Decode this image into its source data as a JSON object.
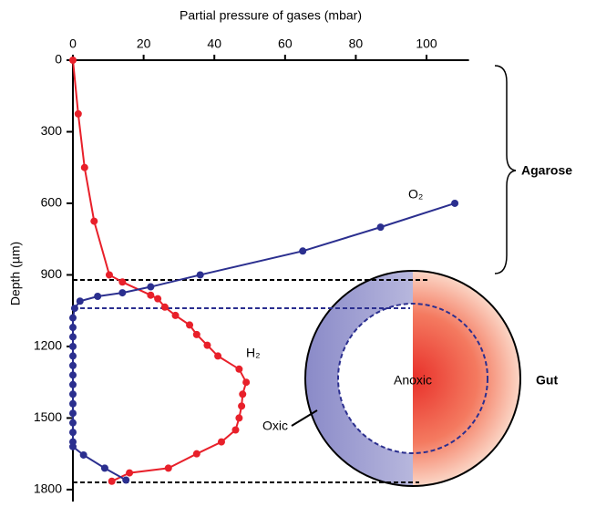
{
  "chart_data": {
    "type": "line",
    "x_label": "Partial pressure of gases (mbar)",
    "y_label": "Depth (µm)",
    "xlim": [
      0,
      112
    ],
    "xticks": [
      0,
      20,
      40,
      60,
      80,
      100
    ],
    "ylim": [
      0,
      1850
    ],
    "yticks": [
      0,
      300,
      600,
      900,
      1200,
      1500,
      1800
    ],
    "y_inverted": true,
    "x_axis_top": true,
    "series": [
      {
        "name": "H₂",
        "color": "#e8202a",
        "x": [
          0,
          1.5,
          3.3,
          6,
          10.3,
          14,
          22,
          24,
          26,
          29,
          33,
          35,
          38,
          41,
          47,
          49,
          48,
          47.7,
          47,
          46,
          42,
          35,
          27,
          16,
          11
        ],
        "y": [
          0,
          225,
          450,
          675,
          900,
          930,
          985,
          1000,
          1035,
          1070,
          1110,
          1150,
          1195,
          1240,
          1295,
          1350,
          1400,
          1450,
          1500,
          1550,
          1600,
          1650,
          1710,
          1730,
          1765
        ]
      },
      {
        "name": "O₂",
        "color": "#2b2f8f",
        "x": [
          108,
          87,
          65,
          36,
          22,
          14,
          7,
          2,
          0.5,
          0,
          0,
          0,
          0,
          0,
          0,
          0,
          0,
          0,
          0,
          0,
          0,
          0,
          0,
          0,
          3,
          9,
          15
        ],
        "y": [
          600,
          700,
          800,
          900,
          950,
          975,
          990,
          1010,
          1040,
          1080,
          1120,
          1160,
          1200,
          1240,
          1280,
          1320,
          1360,
          1400,
          1440,
          1480,
          1520,
          1560,
          1600,
          1620,
          1655,
          1710,
          1760
        ]
      }
    ],
    "annotations": {
      "agarose": "Agarose",
      "gut": "Gut",
      "anoxic": "Anoxic",
      "oxic": "Oxic"
    }
  }
}
